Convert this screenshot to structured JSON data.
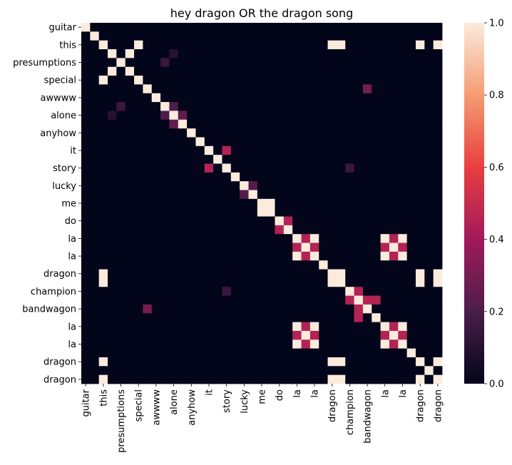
{
  "chart_data": {
    "type": "heatmap",
    "title": "hey dragon OR the dragon song",
    "n": 41,
    "y_tick_labels": [
      {
        "index": 0,
        "label": "guitar"
      },
      {
        "index": 2,
        "label": "this"
      },
      {
        "index": 4,
        "label": "presumptions"
      },
      {
        "index": 6,
        "label": "special"
      },
      {
        "index": 8,
        "label": "awwww"
      },
      {
        "index": 10,
        "label": "alone"
      },
      {
        "index": 12,
        "label": "anyhow"
      },
      {
        "index": 14,
        "label": "it"
      },
      {
        "index": 16,
        "label": "story"
      },
      {
        "index": 18,
        "label": "lucky"
      },
      {
        "index": 20,
        "label": "me"
      },
      {
        "index": 22,
        "label": "do"
      },
      {
        "index": 24,
        "label": "la"
      },
      {
        "index": 26,
        "label": "la"
      },
      {
        "index": 28,
        "label": "dragon"
      },
      {
        "index": 30,
        "label": "champion"
      },
      {
        "index": 32,
        "label": "bandwagon"
      },
      {
        "index": 34,
        "label": "la"
      },
      {
        "index": 36,
        "label": "la"
      },
      {
        "index": 38,
        "label": "dragon"
      },
      {
        "index": 40,
        "label": "dragon"
      }
    ],
    "x_tick_labels": [
      {
        "index": 0,
        "label": "guitar"
      },
      {
        "index": 2,
        "label": "this"
      },
      {
        "index": 4,
        "label": "presumptions"
      },
      {
        "index": 6,
        "label": "special"
      },
      {
        "index": 8,
        "label": "awwww"
      },
      {
        "index": 10,
        "label": "alone"
      },
      {
        "index": 12,
        "label": "anyhow"
      },
      {
        "index": 14,
        "label": "it"
      },
      {
        "index": 16,
        "label": "story"
      },
      {
        "index": 18,
        "label": "lucky"
      },
      {
        "index": 20,
        "label": "me"
      },
      {
        "index": 22,
        "label": "do"
      },
      {
        "index": 24,
        "label": "la"
      },
      {
        "index": 26,
        "label": "la"
      },
      {
        "index": 28,
        "label": "dragon"
      },
      {
        "index": 30,
        "label": "champion"
      },
      {
        "index": 32,
        "label": "bandwagon"
      },
      {
        "index": 34,
        "label": "la"
      },
      {
        "index": 36,
        "label": "la"
      },
      {
        "index": 38,
        "label": "dragon"
      },
      {
        "index": 40,
        "label": "dragon"
      }
    ],
    "diagonal_value": 1.0,
    "off_diagonal_cells": [
      [
        2,
        28,
        1
      ],
      [
        2,
        29,
        1
      ],
      [
        2,
        38,
        1
      ],
      [
        2,
        40,
        1
      ],
      [
        3,
        5,
        1
      ],
      [
        5,
        3,
        1
      ],
      [
        4,
        9,
        0.15
      ],
      [
        9,
        4,
        0.15
      ],
      [
        6,
        2,
        1
      ],
      [
        2,
        6,
        1
      ],
      [
        7,
        32,
        0.3
      ],
      [
        32,
        7,
        0.3
      ],
      [
        10,
        3,
        0.1
      ],
      [
        3,
        10,
        0.1
      ],
      [
        10,
        9,
        0.2
      ],
      [
        9,
        10,
        0.2
      ],
      [
        10,
        10,
        1
      ],
      [
        10,
        11,
        0.25
      ],
      [
        11,
        10,
        0.25
      ],
      [
        14,
        16,
        0.45
      ],
      [
        16,
        14,
        0.45
      ],
      [
        16,
        30,
        0.15
      ],
      [
        30,
        16,
        0.15
      ],
      [
        18,
        19,
        0.22
      ],
      [
        19,
        18,
        0.22
      ],
      [
        20,
        21,
        1
      ],
      [
        21,
        20,
        1
      ],
      [
        22,
        23,
        0.45
      ],
      [
        23,
        22,
        0.45
      ],
      [
        24,
        25,
        0.45
      ],
      [
        25,
        24,
        0.45
      ],
      [
        24,
        26,
        1
      ],
      [
        26,
        24,
        1
      ],
      [
        25,
        26,
        0.45
      ],
      [
        26,
        25,
        0.45
      ],
      [
        24,
        34,
        1
      ],
      [
        24,
        35,
        0.45
      ],
      [
        24,
        36,
        1
      ],
      [
        25,
        34,
        0.45
      ],
      [
        25,
        35,
        1
      ],
      [
        25,
        36,
        0.45
      ],
      [
        26,
        34,
        1
      ],
      [
        26,
        35,
        0.45
      ],
      [
        26,
        36,
        1
      ],
      [
        34,
        24,
        1
      ],
      [
        35,
        24,
        0.45
      ],
      [
        36,
        24,
        1
      ],
      [
        34,
        25,
        0.45
      ],
      [
        35,
        25,
        1
      ],
      [
        36,
        25,
        0.45
      ],
      [
        34,
        26,
        1
      ],
      [
        35,
        26,
        0.45
      ],
      [
        36,
        26,
        1
      ],
      [
        34,
        35,
        0.45
      ],
      [
        35,
        34,
        0.45
      ],
      [
        34,
        36,
        1
      ],
      [
        36,
        34,
        1
      ],
      [
        35,
        36,
        0.45
      ],
      [
        36,
        35,
        0.45
      ],
      [
        28,
        29,
        1
      ],
      [
        29,
        28,
        1
      ],
      [
        28,
        38,
        1
      ],
      [
        28,
        40,
        1
      ],
      [
        29,
        38,
        1
      ],
      [
        29,
        40,
        1
      ],
      [
        38,
        28,
        1
      ],
      [
        40,
        28,
        1
      ],
      [
        38,
        29,
        1
      ],
      [
        40,
        29,
        1
      ],
      [
        38,
        40,
        1
      ],
      [
        40,
        38,
        1
      ],
      [
        28,
        2,
        1
      ],
      [
        29,
        2,
        1
      ],
      [
        38,
        2,
        1
      ],
      [
        40,
        2,
        1
      ],
      [
        30,
        31,
        0.45
      ],
      [
        31,
        30,
        0.45
      ],
      [
        31,
        32,
        0.45
      ],
      [
        32,
        31,
        0.45
      ],
      [
        31,
        33,
        0.45
      ],
      [
        33,
        31,
        0.45
      ]
    ],
    "colorbar": {
      "min": 0.0,
      "max": 1.0,
      "ticks": [
        "0.0",
        "0.2",
        "0.4",
        "0.6",
        "0.8",
        "1.0"
      ],
      "colormap": "rocket"
    }
  }
}
